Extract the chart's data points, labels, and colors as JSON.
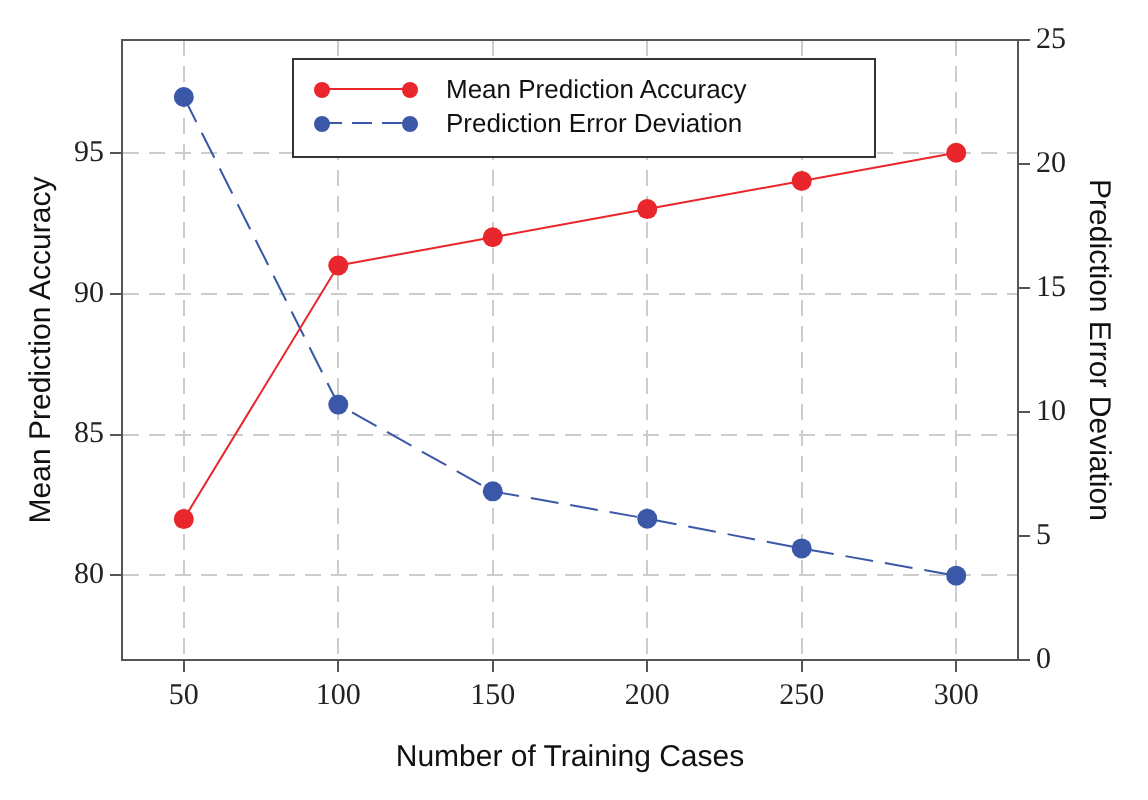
{
  "chart_data": {
    "type": "line",
    "xlabel": "Number of Training Cases",
    "ylabel": "Mean Prediction Accuracy",
    "y2label": "Prediction Error Deviation",
    "x": [
      50,
      100,
      150,
      200,
      250,
      300
    ],
    "series": [
      {
        "name": "Mean Prediction Accuracy",
        "color": "#e8262b",
        "values": [
          82,
          91,
          92,
          93,
          94,
          95
        ],
        "line_style": "solid"
      },
      {
        "name": "Prediction Error Deviation",
        "color": "#3a57a8",
        "values": [
          22.7,
          10.3,
          6.8,
          5.7,
          4.5,
          3.4
        ],
        "axis": "y2",
        "line_style": "dashed"
      }
    ],
    "xlim": [
      30,
      320
    ],
    "xticks": [
      50,
      100,
      150,
      200,
      250,
      300
    ],
    "ylim": [
      77,
      99
    ],
    "yticks": [
      80,
      85,
      90,
      95
    ],
    "y2lim": [
      0,
      25
    ],
    "y2ticks": [
      0,
      5,
      10,
      15,
      20,
      25
    ],
    "grid": true,
    "legend": "top",
    "marker": "circle"
  }
}
